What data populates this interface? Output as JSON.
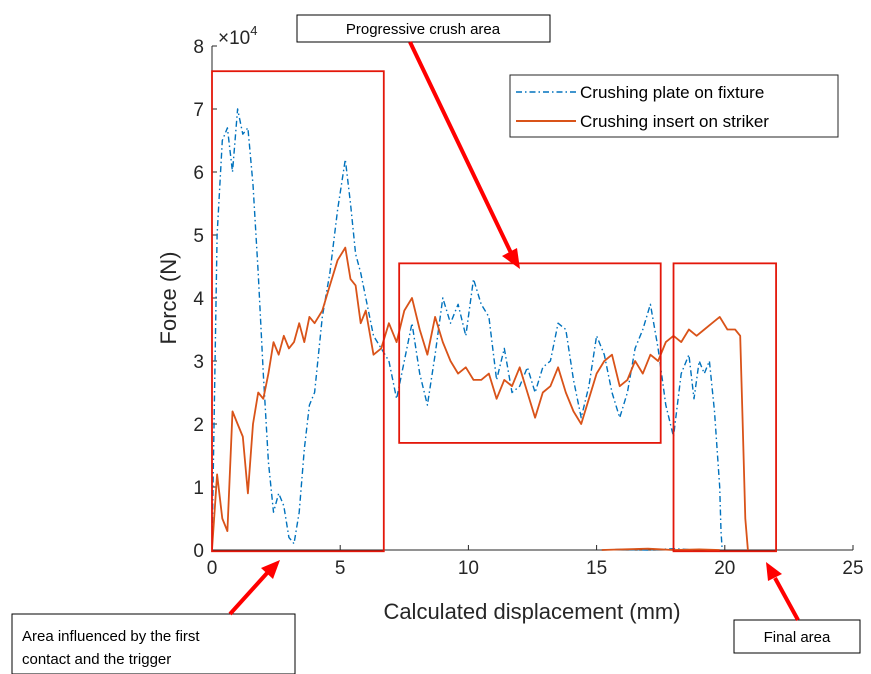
{
  "chart_data": {
    "type": "line",
    "xlabel": "Calculated displacement (mm)",
    "ylabel": "Force (N)",
    "y_multiplier": "×10",
    "y_multiplier_exp": "4",
    "xlim": [
      0,
      25
    ],
    "ylim": [
      0,
      80000
    ],
    "xticks": [
      0,
      5,
      10,
      15,
      20,
      25
    ],
    "yticks": [
      0,
      10000,
      20000,
      30000,
      40000,
      50000,
      60000,
      70000,
      80000
    ],
    "ytick_labels": [
      "0",
      "1",
      "2",
      "3",
      "4",
      "5",
      "6",
      "7",
      "8"
    ],
    "grid": false,
    "legend_position": "top-right",
    "series": [
      {
        "name": "Crushing plate on fixture",
        "color": "#0072BD",
        "style": "dash-dot",
        "x": [
          0,
          0.2,
          0.4,
          0.6,
          0.8,
          1.0,
          1.2,
          1.4,
          1.6,
          1.8,
          2.0,
          2.2,
          2.4,
          2.6,
          2.8,
          3.0,
          3.2,
          3.4,
          3.6,
          3.8,
          4.0,
          4.3,
          4.6,
          4.9,
          5.2,
          5.4,
          5.6,
          5.8,
          6.0,
          6.3,
          6.6,
          6.9,
          7.2,
          7.5,
          7.8,
          8.1,
          8.4,
          8.7,
          9.0,
          9.3,
          9.6,
          9.9,
          10.2,
          10.5,
          10.8,
          11.1,
          11.4,
          11.7,
          12.0,
          12.3,
          12.6,
          12.9,
          13.2,
          13.5,
          13.8,
          14.1,
          14.4,
          14.7,
          15.0,
          15.3,
          15.6,
          15.9,
          16.2,
          16.5,
          16.8,
          17.1,
          17.4,
          17.7,
          18.0,
          18.3,
          18.6,
          18.8,
          19.0,
          19.2,
          19.4,
          19.6,
          19.8,
          19.85,
          19.9
        ],
        "values": [
          0,
          50000,
          65000,
          67000,
          60000,
          70000,
          66000,
          67000,
          58000,
          44000,
          28000,
          14000,
          6000,
          9000,
          7000,
          2000,
          1000,
          6000,
          16000,
          23000,
          25000,
          37000,
          44000,
          54000,
          62000,
          55000,
          47000,
          44000,
          40000,
          34000,
          32000,
          30000,
          24000,
          30000,
          36000,
          28000,
          23000,
          31000,
          40000,
          36000,
          39000,
          34000,
          43000,
          39000,
          37000,
          27000,
          32000,
          25000,
          26000,
          29000,
          25000,
          29000,
          30000,
          36000,
          35000,
          27000,
          21000,
          26000,
          34000,
          31000,
          25000,
          21000,
          25000,
          32000,
          35000,
          39000,
          32000,
          23000,
          18000,
          28000,
          31000,
          24000,
          30000,
          28000,
          30000,
          22000,
          10000,
          3000,
          0
        ]
      },
      {
        "name": "Crushing insert on striker",
        "color": "#D95319",
        "style": "solid",
        "x": [
          0,
          0.2,
          0.4,
          0.6,
          0.8,
          1.0,
          1.2,
          1.4,
          1.6,
          1.8,
          2.0,
          2.2,
          2.4,
          2.6,
          2.8,
          3.0,
          3.2,
          3.4,
          3.6,
          3.8,
          4.0,
          4.3,
          4.6,
          4.9,
          5.2,
          5.4,
          5.6,
          5.8,
          6.0,
          6.3,
          6.6,
          6.9,
          7.2,
          7.5,
          7.8,
          8.1,
          8.4,
          8.7,
          9.0,
          9.3,
          9.6,
          9.9,
          10.2,
          10.5,
          10.8,
          11.1,
          11.4,
          11.7,
          12.0,
          12.3,
          12.6,
          12.9,
          13.2,
          13.5,
          13.8,
          14.1,
          14.4,
          14.7,
          15.0,
          15.3,
          15.6,
          15.9,
          16.2,
          16.5,
          16.8,
          17.1,
          17.4,
          17.7,
          18.0,
          18.3,
          18.6,
          18.9,
          19.2,
          19.5,
          19.8,
          20.1,
          20.4,
          20.6,
          20.7,
          20.8,
          20.9
        ],
        "values": [
          0,
          12000,
          5000,
          3000,
          22000,
          20000,
          18000,
          9000,
          20000,
          25000,
          24000,
          28000,
          33000,
          31000,
          34000,
          32000,
          33000,
          36000,
          33000,
          37000,
          36000,
          38000,
          42000,
          46000,
          48000,
          43000,
          42000,
          36000,
          38000,
          31000,
          32000,
          36000,
          33000,
          38000,
          40000,
          35000,
          31000,
          37000,
          33000,
          30000,
          28000,
          29000,
          27000,
          27000,
          28000,
          24000,
          27000,
          26000,
          29000,
          25000,
          21000,
          25000,
          26000,
          29000,
          25000,
          22000,
          20000,
          24000,
          28000,
          30000,
          31000,
          26000,
          27000,
          30000,
          28000,
          31000,
          30000,
          33000,
          34000,
          33000,
          35000,
          34000,
          35000,
          36000,
          37000,
          35000,
          35000,
          34000,
          20000,
          5000,
          0
        ]
      },
      {
        "name": "",
        "color": "#0072BD",
        "style": "dash-dot",
        "x": [
          15.2,
          16.0,
          17.0,
          18.0,
          18.5,
          18.8
        ],
        "values": [
          0,
          100,
          0,
          200,
          100,
          0
        ]
      },
      {
        "name": "",
        "color": "#D95319",
        "style": "solid",
        "x": [
          15.2,
          16.0,
          17.0,
          18.0,
          19.0,
          19.8
        ],
        "values": [
          0,
          100,
          200,
          0,
          100,
          0
        ]
      }
    ],
    "annotations": [
      {
        "name": "first-contact",
        "text_lines": [
          "Area influenced by the first",
          "contact and the trigger"
        ],
        "region_x": [
          0,
          6.7
        ],
        "region_y": [
          -200,
          76000
        ]
      },
      {
        "name": "progressive",
        "text_lines": [
          "Progressive crush area"
        ],
        "region_x": [
          7.3,
          17.5
        ],
        "region_y": [
          17000,
          45500
        ]
      },
      {
        "name": "final",
        "text_lines": [
          "Final area"
        ],
        "region_x": [
          18.0,
          22.0
        ],
        "region_y": [
          -200,
          45500
        ]
      }
    ]
  }
}
